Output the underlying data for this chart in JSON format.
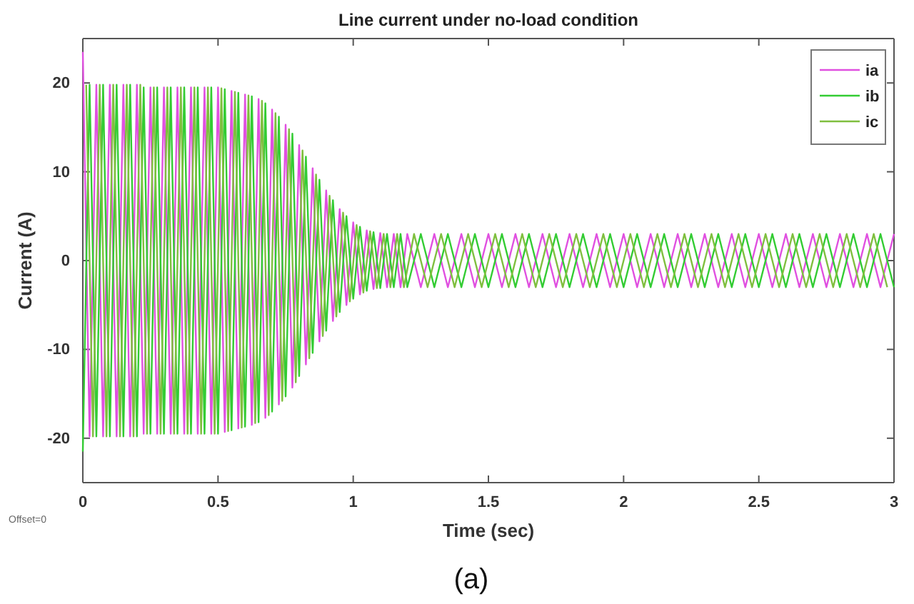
{
  "chart_data": {
    "type": "line",
    "title": "Line current under no-load condition",
    "xlabel": "Time (sec)",
    "ylabel": "Current (A)",
    "xlim": [
      0,
      3
    ],
    "xticks": [
      0,
      0.5,
      1,
      1.5,
      2,
      2.5,
      3
    ],
    "ylim": [
      -25,
      25
    ],
    "yticks": [
      -20,
      -10,
      0,
      10,
      20
    ],
    "grid": false,
    "legend": "top right",
    "line_style": "solid",
    "marker": "none",
    "annotations": [
      "Offset=0",
      "(a)"
    ],
    "x": [
      0,
      0.025,
      0.05,
      0.075,
      0.1,
      0.125,
      0.15,
      0.175,
      0.2,
      0.225,
      0.25,
      0.275,
      0.3,
      0.325,
      0.35,
      0.375,
      0.4,
      0.425,
      0.45,
      0.475,
      0.5,
      0.525,
      0.55,
      0.575,
      0.6,
      0.625,
      0.65,
      0.675,
      0.7,
      0.725,
      0.75,
      0.775,
      0.8,
      0.825,
      0.85,
      0.875,
      0.9,
      0.925,
      0.95,
      0.975,
      1,
      1.025,
      1.05,
      1.075,
      1.1,
      1.125,
      1.15,
      1.175,
      1.2,
      1.25,
      1.3,
      1.35,
      1.4,
      1.45,
      1.5,
      1.55,
      1.6,
      1.65,
      1.7,
      1.75,
      1.8,
      1.85,
      1.9,
      1.95,
      2,
      2.05,
      2.1,
      2.15,
      2.2,
      2.25,
      2.3,
      2.35,
      2.4,
      2.45,
      2.5,
      2.55,
      2.6,
      2.65,
      2.7,
      2.75,
      2.8,
      2.85,
      2.9,
      2.95,
      3
    ],
    "series": [
      {
        "name": "ia",
        "color": "#e050e0",
        "values": [
          23.5,
          -19.8,
          19.8,
          -19.8,
          19.8,
          -19.8,
          19.8,
          -19.8,
          19.8,
          -19.5,
          19.5,
          -19.5,
          19.5,
          -19.5,
          19.5,
          -19.5,
          19.5,
          -19.5,
          19.5,
          -19.5,
          19.5,
          -19.3,
          19.1,
          -18.9,
          18.7,
          -18.5,
          18.2,
          -17.7,
          17.0,
          -16.2,
          15.3,
          -14.3,
          13.0,
          -11.7,
          10.4,
          -9.1,
          7.9,
          -6.8,
          5.8,
          -5.0,
          4.3,
          -3.8,
          3.4,
          -3.2,
          3.1,
          -3,
          3,
          -3,
          3,
          -3,
          3,
          -3,
          3,
          -3,
          3,
          -3,
          3,
          -3,
          3,
          -3,
          3,
          -3,
          3,
          -3,
          3,
          -3,
          3,
          -3,
          3,
          -3,
          3,
          -3,
          3,
          -3,
          3,
          -3,
          3,
          -3,
          3,
          -3,
          3,
          -3,
          3,
          -3,
          3
        ]
      },
      {
        "name": "ib",
        "color": "#33cc33",
        "values": [
          -21.5,
          19.8,
          -19.8,
          19.8,
          -19.8,
          19.8,
          -19.8,
          19.8,
          -19.8,
          19.5,
          -19.5,
          19.5,
          -19.5,
          19.5,
          -19.5,
          19.5,
          -19.5,
          19.5,
          -19.5,
          19.5,
          -19.5,
          19.3,
          -19.1,
          18.9,
          -18.7,
          18.5,
          -18.2,
          17.7,
          -17.0,
          16.2,
          -15.3,
          14.3,
          -13.0,
          11.7,
          -10.4,
          9.1,
          -7.9,
          6.8,
          -5.8,
          5.0,
          -4.3,
          3.8,
          -3.4,
          3.2,
          -3.1,
          3,
          -3,
          3,
          -3,
          3,
          -3,
          3,
          -3,
          3,
          -3,
          3,
          -3,
          3,
          -3,
          3,
          -3,
          3,
          -3,
          3,
          -3,
          3,
          -3,
          3,
          -3,
          3,
          -3,
          3,
          -3,
          3,
          -3,
          3,
          -3,
          3,
          -3,
          3,
          -3,
          3,
          -3,
          3,
          -3
        ]
      },
      {
        "name": "ic",
        "color": "#7fbf3f",
        "x": [
          0.0125,
          0.0375,
          0.0625,
          0.0875,
          0.1125,
          0.1375,
          0.1625,
          0.1875,
          0.2125,
          0.2375,
          0.2625,
          0.2875,
          0.3125,
          0.3375,
          0.3625,
          0.3875,
          0.4125,
          0.4375,
          0.4625,
          0.4875,
          0.5125,
          0.5375,
          0.5625,
          0.5875,
          0.6125,
          0.6375,
          0.6625,
          0.6875,
          0.7125,
          0.7375,
          0.7625,
          0.7875,
          0.8125,
          0.8375,
          0.8625,
          0.8875,
          0.9125,
          0.9375,
          0.9625,
          0.9875,
          1.0125,
          1.0375,
          1.0625,
          1.0875,
          1.1125,
          1.1375,
          1.1625,
          1.1875,
          1.225,
          1.275,
          1.325,
          1.375,
          1.425,
          1.475,
          1.525,
          1.575,
          1.625,
          1.675,
          1.725,
          1.775,
          1.825,
          1.875,
          1.925,
          1.975,
          2.025,
          2.075,
          2.125,
          2.175,
          2.225,
          2.275,
          2.325,
          2.375,
          2.425,
          2.475,
          2.525,
          2.575,
          2.625,
          2.675,
          2.725,
          2.775,
          2.825,
          2.875,
          2.925,
          2.975
        ],
        "values": [
          19.8,
          -19.8,
          19.8,
          -19.8,
          19.8,
          -19.8,
          19.8,
          -19.8,
          19.8,
          -19.5,
          19.5,
          -19.5,
          19.5,
          -19.5,
          19.5,
          -19.5,
          19.5,
          -19.5,
          19.5,
          -19.5,
          19.4,
          -19.2,
          19.0,
          -18.8,
          18.6,
          -18.3,
          18.0,
          -17.4,
          16.6,
          -15.8,
          14.8,
          -13.7,
          12.4,
          -11.0,
          9.7,
          -8.5,
          7.3,
          -6.3,
          5.4,
          -4.6,
          4.0,
          -3.6,
          3.3,
          -3.1,
          3.0,
          -3,
          3,
          -3,
          3,
          -3,
          3,
          -3,
          3,
          -3,
          3,
          -3,
          3,
          -3,
          3,
          -3,
          3,
          -3,
          3,
          -3,
          3,
          -3,
          3,
          -3,
          3,
          -3,
          3,
          -3,
          3,
          -3,
          3,
          -3,
          3,
          -3,
          3,
          -3,
          3,
          -3,
          3,
          -3
        ]
      }
    ]
  }
}
